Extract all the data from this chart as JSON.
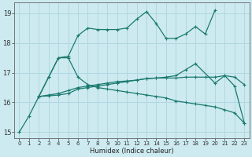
{
  "xlabel": "Humidex (Indice chaleur)",
  "bg_color": "#cdeaf0",
  "grid_color": "#b0d8e0",
  "line_color": "#1a7a6e",
  "xlim": [
    -0.5,
    23.5
  ],
  "ylim": [
    14.8,
    19.35
  ],
  "xticks": [
    0,
    1,
    2,
    3,
    4,
    5,
    6,
    7,
    8,
    9,
    10,
    11,
    12,
    13,
    14,
    15,
    16,
    17,
    18,
    19,
    20,
    21,
    22,
    23
  ],
  "yticks": [
    15,
    16,
    17,
    18,
    19
  ],
  "series": [
    {
      "x": [
        0,
        1,
        2,
        3,
        4,
        5,
        6,
        7,
        8,
        9,
        10,
        11,
        12,
        13,
        14,
        15,
        16,
        17,
        18,
        19,
        20
      ],
      "y": [
        15.0,
        15.55,
        16.2,
        16.85,
        17.5,
        17.55,
        18.25,
        18.5,
        18.45,
        18.45,
        18.45,
        18.5,
        18.8,
        19.05,
        18.65,
        18.15,
        18.15,
        18.3,
        18.55,
        18.3,
        19.1
      ]
    },
    {
      "x": [
        2,
        3,
        4,
        5,
        6,
        7,
        8,
        9,
        10,
        11,
        12,
        13,
        14,
        15,
        16,
        17,
        18,
        19,
        20,
        21,
        22,
        23
      ],
      "y": [
        16.2,
        16.25,
        16.3,
        16.4,
        16.5,
        16.55,
        16.6,
        16.65,
        16.7,
        16.72,
        16.75,
        16.8,
        16.82,
        16.82,
        16.82,
        16.85,
        16.85,
        16.85,
        16.85,
        16.9,
        16.85,
        16.6
      ]
    },
    {
      "x": [
        2,
        3,
        4,
        5,
        6,
        7,
        8,
        9,
        10,
        11,
        12,
        13,
        14,
        15,
        16,
        17,
        18,
        19,
        20,
        21,
        22,
        23
      ],
      "y": [
        16.2,
        16.85,
        17.5,
        17.5,
        16.85,
        16.6,
        16.5,
        16.45,
        16.4,
        16.35,
        16.3,
        16.25,
        16.2,
        16.15,
        16.05,
        16.0,
        15.95,
        15.9,
        15.85,
        15.75,
        15.65,
        15.3
      ]
    },
    {
      "x": [
        2,
        3,
        4,
        5,
        6,
        7,
        8,
        9,
        10,
        11,
        12,
        13,
        14,
        15,
        16,
        17,
        18,
        20,
        21,
        22,
        23
      ],
      "y": [
        16.2,
        16.22,
        16.25,
        16.3,
        16.45,
        16.5,
        16.55,
        16.6,
        16.65,
        16.7,
        16.75,
        16.8,
        16.82,
        16.85,
        16.9,
        17.1,
        17.3,
        16.65,
        16.9,
        16.55,
        15.3
      ]
    }
  ]
}
